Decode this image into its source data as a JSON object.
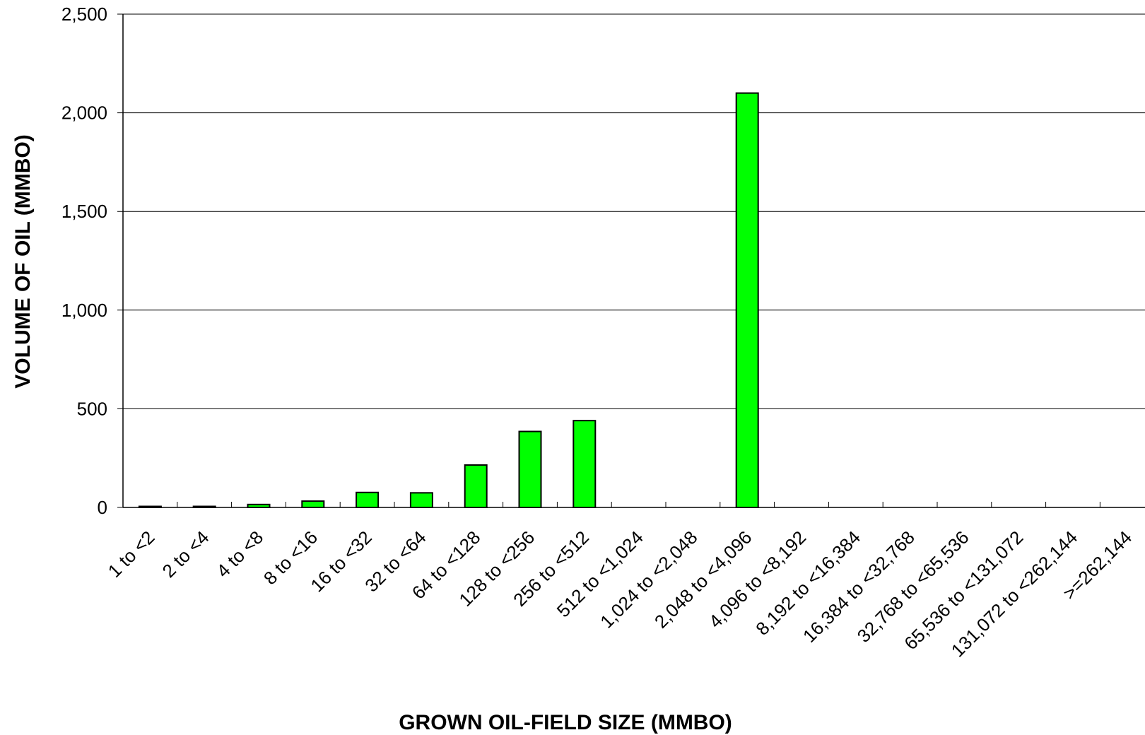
{
  "chart_data": {
    "type": "bar",
    "title": "",
    "xlabel": "GROWN OIL-FIELD SIZE (MMBO)",
    "ylabel": "VOLUME OF OIL (MMBO)",
    "ylim": [
      0,
      2500
    ],
    "yticks": [
      "0",
      "500",
      "1,000",
      "1,500",
      "2,000",
      "2,500"
    ],
    "grid": true,
    "bar_color": "#00ff00",
    "categories": [
      "1 to <2",
      "2 to <4",
      "4 to <8",
      "8 to <16",
      "16 to <32",
      "32 to <64",
      "64 to <128",
      "128 to <256",
      "256 to <512",
      "512 to <1,024",
      "1,024 to <2,048",
      "2,048 to <4,096",
      "4,096 to <8,192",
      "8,192 to <16,384",
      "16,384 to <32,768",
      "32,768 to <65,536",
      "65,536 to <131,072",
      "131,072 to <262,144",
      ">=262,144"
    ],
    "values": [
      2,
      4,
      15,
      32,
      76,
      74,
      215,
      385,
      440,
      0,
      0,
      2100,
      0,
      0,
      0,
      0,
      0,
      0,
      0
    ]
  }
}
